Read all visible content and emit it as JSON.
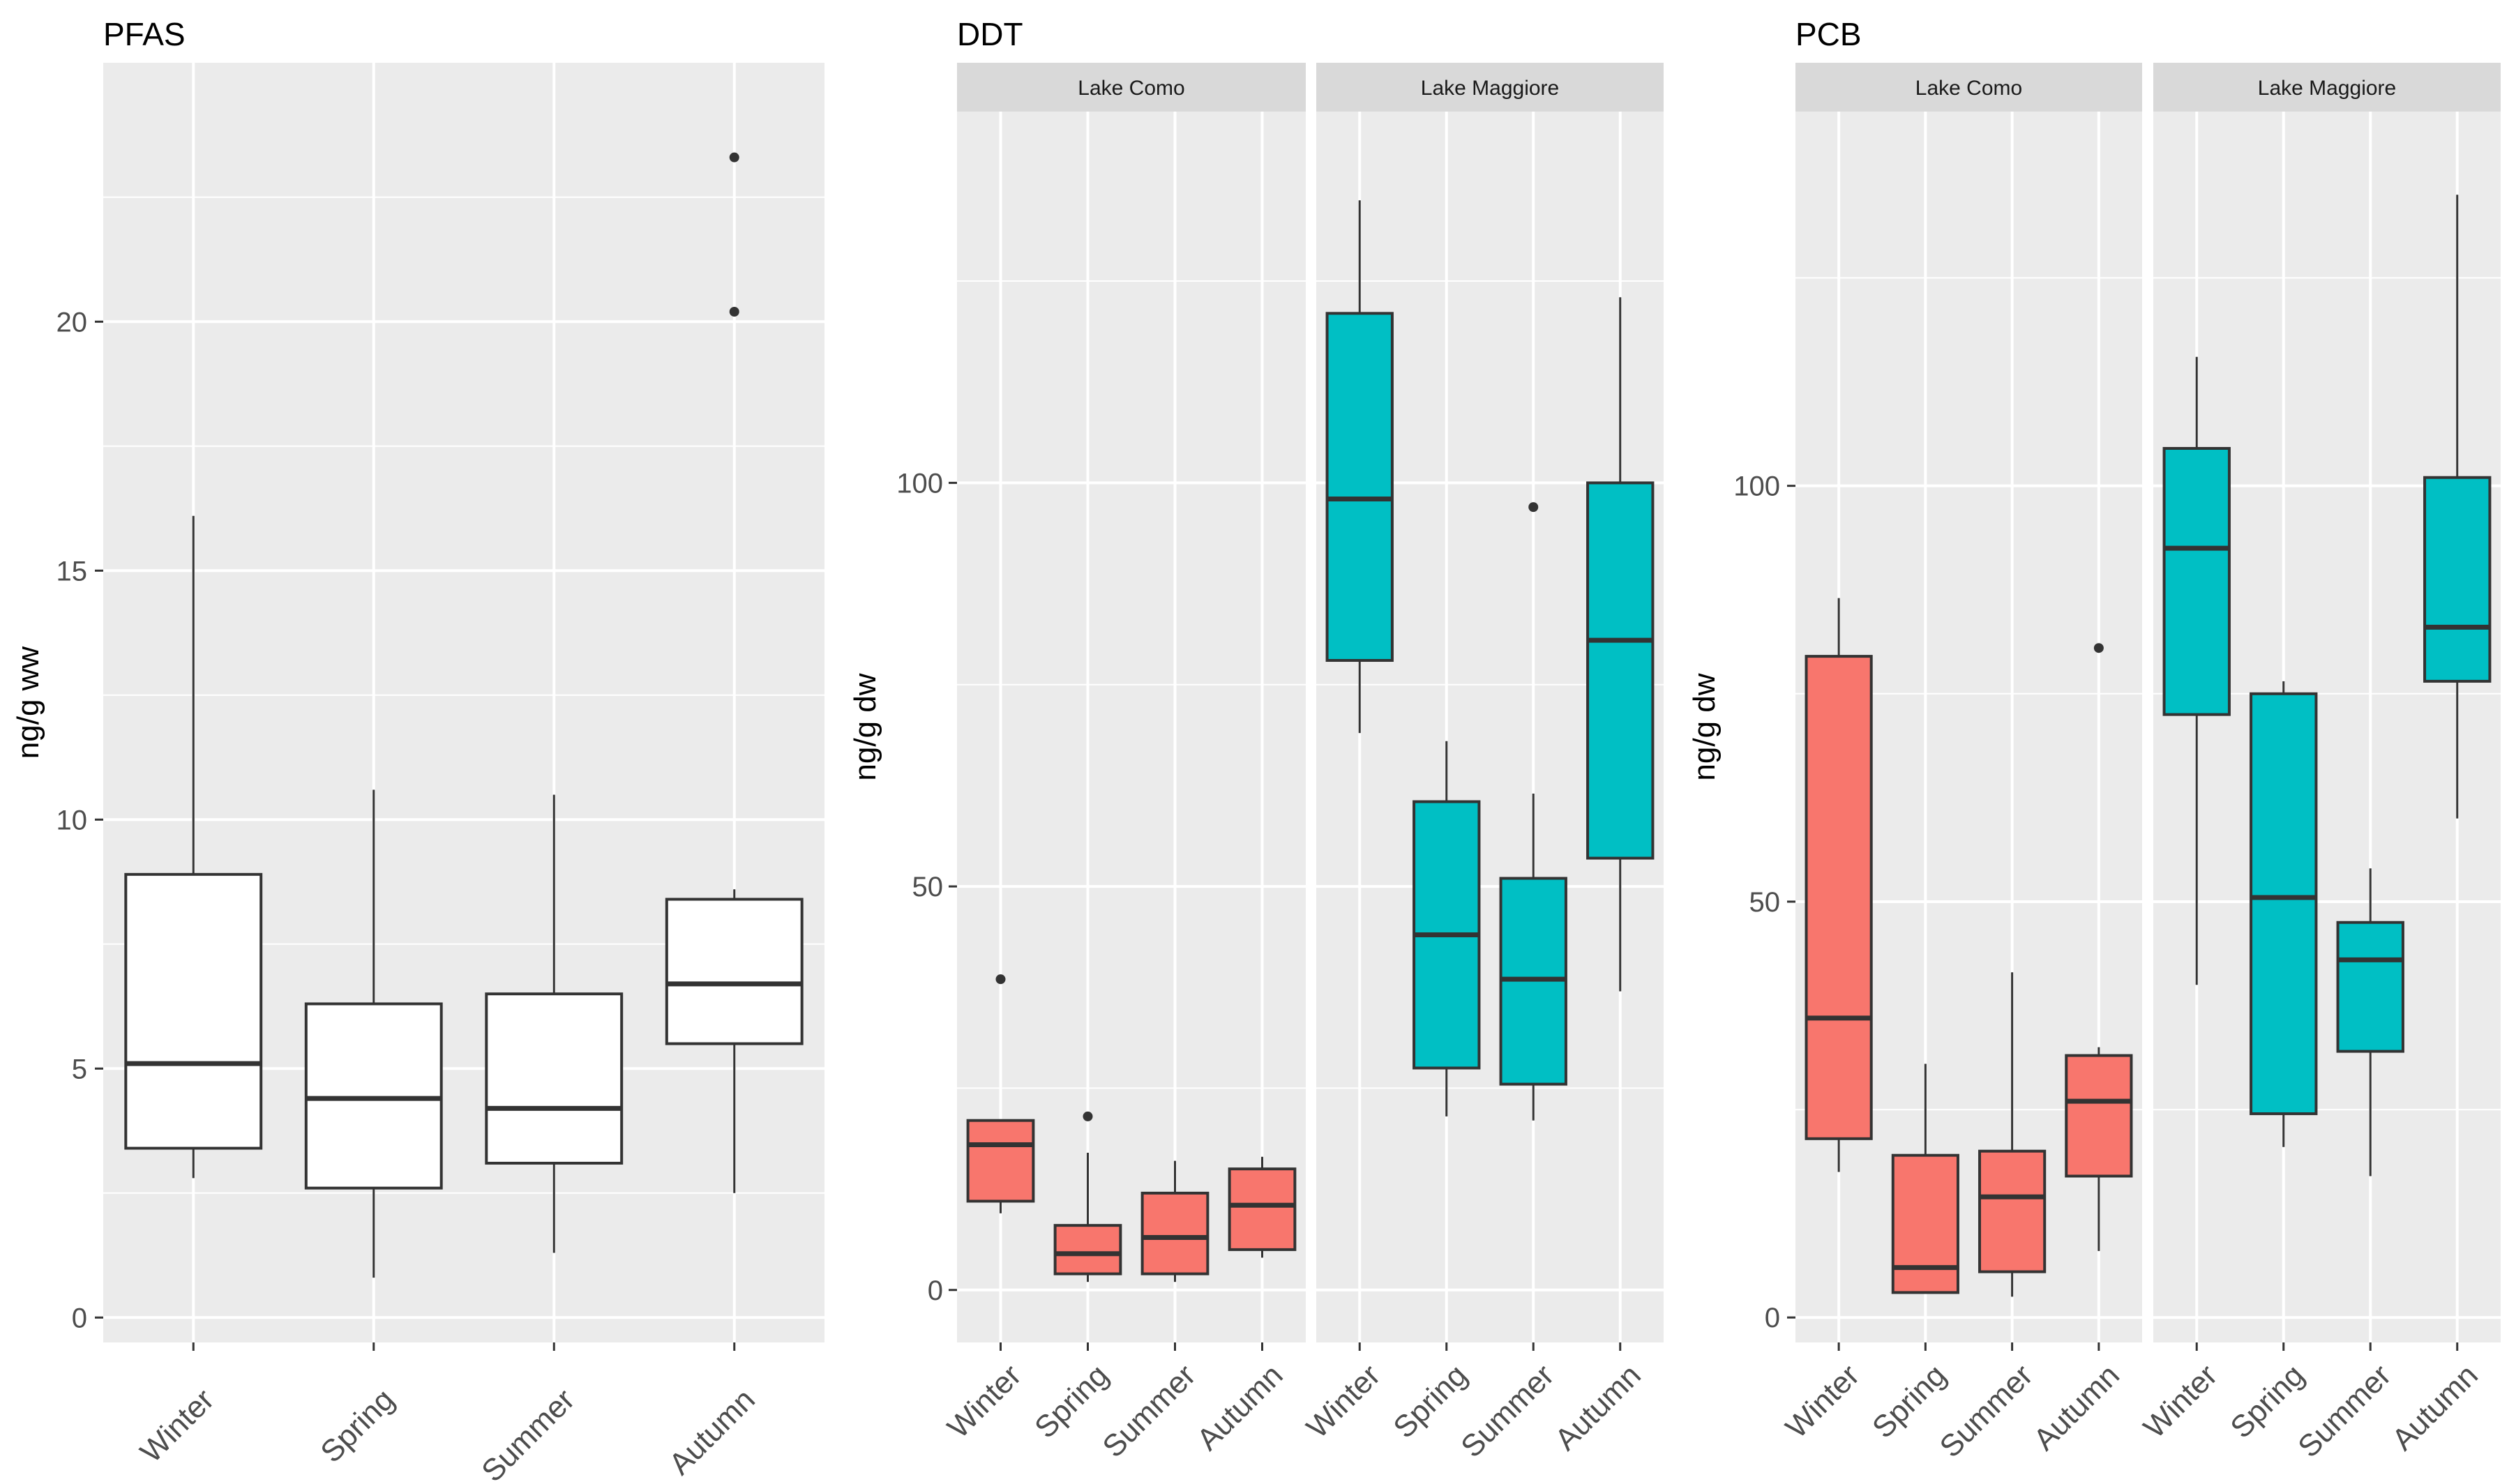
{
  "chart_data": [
    {
      "type": "boxplot",
      "title": "PFAS",
      "ylabel": "ng/g ww",
      "xlabel": "",
      "ylim": [
        -0.5,
        25.2
      ],
      "yticks": [
        0,
        5,
        10,
        15,
        20
      ],
      "categories": [
        "Winter",
        "Spring",
        "Summer",
        "Autumn"
      ],
      "facets": [
        {
          "name": "",
          "fill": "#FFFFFF",
          "boxes": [
            {
              "category": "Winter",
              "lower_whisker": 2.8,
              "q1": 3.4,
              "median": 5.1,
              "q3": 8.9,
              "upper_whisker": 16.1,
              "outliers": []
            },
            {
              "category": "Spring",
              "lower_whisker": 0.8,
              "q1": 2.6,
              "median": 4.4,
              "q3": 6.3,
              "upper_whisker": 10.6,
              "outliers": []
            },
            {
              "category": "Summer",
              "lower_whisker": 1.3,
              "q1": 3.1,
              "median": 4.2,
              "q3": 6.5,
              "upper_whisker": 10.5,
              "outliers": []
            },
            {
              "category": "Autumn",
              "lower_whisker": 2.5,
              "q1": 5.5,
              "median": 6.7,
              "q3": 8.4,
              "upper_whisker": 8.6,
              "outliers": [
                20.2,
                23.3
              ]
            }
          ]
        }
      ]
    },
    {
      "type": "boxplot",
      "title": "DDT",
      "ylabel": "ng/g dw",
      "xlabel": "",
      "ylim": [
        -6.5,
        146
      ],
      "yticks": [
        0,
        50,
        100
      ],
      "categories": [
        "Winter",
        "Spring",
        "Summer",
        "Autumn"
      ],
      "facets": [
        {
          "name": "Lake Como",
          "fill": "#F8766D",
          "boxes": [
            {
              "category": "Winter",
              "lower_whisker": 9.5,
              "q1": 11,
              "median": 18,
              "q3": 21,
              "upper_whisker": 21,
              "outliers": [
                38.5
              ]
            },
            {
              "category": "Spring",
              "lower_whisker": 1,
              "q1": 2,
              "median": 4.5,
              "q3": 8,
              "upper_whisker": 17,
              "outliers": [
                21.5
              ]
            },
            {
              "category": "Summer",
              "lower_whisker": 1,
              "q1": 2,
              "median": 6.5,
              "q3": 12,
              "upper_whisker": 16,
              "outliers": []
            },
            {
              "category": "Autumn",
              "lower_whisker": 4,
              "q1": 5,
              "median": 10.5,
              "q3": 15,
              "upper_whisker": 16.5,
              "outliers": []
            }
          ]
        },
        {
          "name": "Lake Maggiore",
          "fill": "#00BFC4",
          "boxes": [
            {
              "category": "Winter",
              "lower_whisker": 69,
              "q1": 78,
              "median": 98,
              "q3": 121,
              "upper_whisker": 135,
              "outliers": []
            },
            {
              "category": "Spring",
              "lower_whisker": 21.5,
              "q1": 27.5,
              "median": 44,
              "q3": 60.5,
              "upper_whisker": 68,
              "outliers": []
            },
            {
              "category": "Summer",
              "lower_whisker": 21,
              "q1": 25.5,
              "median": 38.5,
              "q3": 51,
              "upper_whisker": 61.5,
              "outliers": [
                97
              ]
            },
            {
              "category": "Autumn",
              "lower_whisker": 37,
              "q1": 53.5,
              "median": 80.5,
              "q3": 100,
              "upper_whisker": 123,
              "outliers": []
            }
          ]
        }
      ]
    },
    {
      "type": "boxplot",
      "title": "PCB",
      "ylabel": "ng/g dw",
      "xlabel": "",
      "ylim": [
        -3,
        145
      ],
      "yticks": [
        0,
        50,
        100
      ],
      "categories": [
        "Winter",
        "Spring",
        "Summer",
        "Autumn"
      ],
      "facets": [
        {
          "name": "Lake Como",
          "fill": "#F8766D",
          "boxes": [
            {
              "category": "Winter",
              "lower_whisker": 17.5,
              "q1": 21.5,
              "median": 36,
              "q3": 79.5,
              "upper_whisker": 86.5,
              "outliers": []
            },
            {
              "category": "Spring",
              "lower_whisker": 3,
              "q1": 3,
              "median": 6,
              "q3": 19.5,
              "upper_whisker": 30.5,
              "outliers": []
            },
            {
              "category": "Summer",
              "lower_whisker": 2.5,
              "q1": 5.5,
              "median": 14.5,
              "q3": 20,
              "upper_whisker": 41.5,
              "outliers": []
            },
            {
              "category": "Autumn",
              "lower_whisker": 8,
              "q1": 17,
              "median": 26,
              "q3": 31.5,
              "upper_whisker": 32.5,
              "outliers": [
                80.5
              ]
            }
          ]
        },
        {
          "name": "Lake Maggiore",
          "fill": "#00BFC4",
          "boxes": [
            {
              "category": "Winter",
              "lower_whisker": 40,
              "q1": 72.5,
              "median": 92.5,
              "q3": 104.5,
              "upper_whisker": 115.5,
              "outliers": []
            },
            {
              "category": "Spring",
              "lower_whisker": 20.5,
              "q1": 24.5,
              "median": 50.5,
              "q3": 75,
              "upper_whisker": 76.5,
              "outliers": []
            },
            {
              "category": "Summer",
              "lower_whisker": 17,
              "q1": 32,
              "median": 43,
              "q3": 47.5,
              "upper_whisker": 54,
              "outliers": []
            },
            {
              "category": "Autumn",
              "lower_whisker": 60,
              "q1": 76.5,
              "median": 83,
              "q3": 101,
              "upper_whisker": 135,
              "outliers": []
            }
          ]
        }
      ]
    }
  ]
}
